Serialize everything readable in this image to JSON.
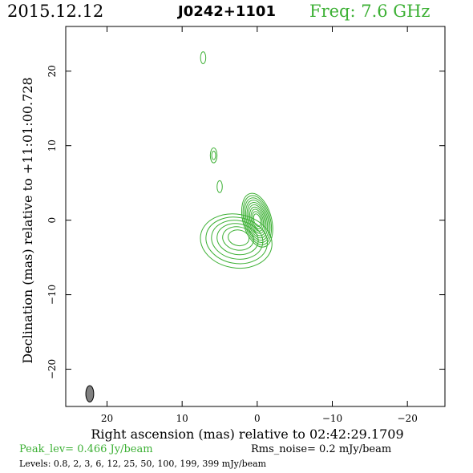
{
  "header": {
    "date": "2015.12.12",
    "source": "J0242+1101",
    "freq_label": "Freq:  7.6  GHz"
  },
  "footer": {
    "peak": "Peak_lev=  0.466  Jy/beam",
    "rms": "Rms_noise=  0.2  mJy/beam",
    "levels": "Levels: 0.8,    2,    3,    6,   12,   25,   50, 100, 199, 399 mJy/beam"
  },
  "colors": {
    "contour": "#3cb034",
    "beam": "#808080",
    "text_green": "#3cb034"
  },
  "chart_data": {
    "type": "contour",
    "title": "J0242+1101",
    "xlabel": "Right ascension (mas) relative to 02:42:29.1709",
    "ylabel": "Declination (mas) relative to +11:01:00.728",
    "xlim": [
      25.5,
      -25
    ],
    "ylim": [
      -25,
      26
    ],
    "x_reversed": true,
    "xticks": [
      20,
      10,
      0,
      -10,
      -20
    ],
    "yticks": [
      -20,
      -10,
      0,
      10,
      20
    ],
    "xticklabels": [
      "20",
      "10",
      "0",
      "−10",
      "−20"
    ],
    "yticklabels": [
      "−20",
      "−10",
      "0",
      "10",
      "20"
    ],
    "peak_jy_per_beam": 0.466,
    "rms_mjy_per_beam": 0.2,
    "levels_mjy_per_beam": [
      0.8,
      2,
      3,
      6,
      12,
      25,
      50,
      100,
      199,
      399
    ],
    "beam": {
      "x": 22.3,
      "y": -23.3,
      "major_mas": 2.2,
      "minor_mas": 1.0,
      "pa_deg": 0
    },
    "components": [
      {
        "name": "core",
        "x": 0,
        "y": 0,
        "n_contours": 10,
        "rx_max": 1.9,
        "ry_max": 3.7,
        "pa_deg": -15
      },
      {
        "name": "extended",
        "x": 2.8,
        "y": -2.8,
        "n_contours": 6,
        "rx_max": 4.8,
        "ry_max": 3.6,
        "pa_deg": 10
      },
      {
        "name": "knot1",
        "x": 5.0,
        "y": 4.5,
        "n_contours": 1,
        "rx_max": 0.35,
        "ry_max": 0.8,
        "pa_deg": 0
      },
      {
        "name": "knot2",
        "x": 5.8,
        "y": 8.7,
        "n_contours": 2,
        "rx_max": 0.45,
        "ry_max": 1.0,
        "pa_deg": 0
      },
      {
        "name": "knot3",
        "x": 7.2,
        "y": 21.8,
        "n_contours": 1,
        "rx_max": 0.35,
        "ry_max": 0.8,
        "pa_deg": 0
      }
    ]
  }
}
